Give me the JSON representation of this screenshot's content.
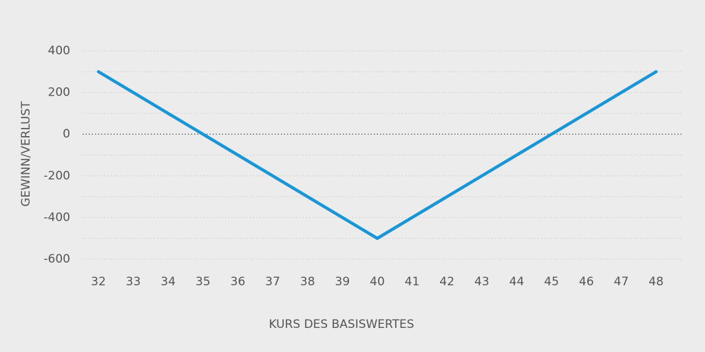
{
  "chart_data": {
    "type": "line",
    "x_label": "KURS DES BASISWERTES",
    "y_label": "GEWINN/VERLUST",
    "x": [
      32,
      40,
      48
    ],
    "series": [
      {
        "color": "#1a96d6",
        "values": [
          300,
          -500,
          300
        ]
      }
    ],
    "xlim": [
      32,
      48
    ],
    "xticks": [
      32,
      33,
      34,
      35,
      36,
      37,
      38,
      39,
      40,
      41,
      42,
      43,
      44,
      45,
      46,
      47,
      48
    ],
    "ylim": [
      -600,
      400
    ],
    "yticks": [
      400,
      200,
      0,
      -200,
      -400,
      -600
    ],
    "minor_yticks": [
      300,
      100,
      -100,
      -300,
      -500
    ],
    "grid": true
  }
}
